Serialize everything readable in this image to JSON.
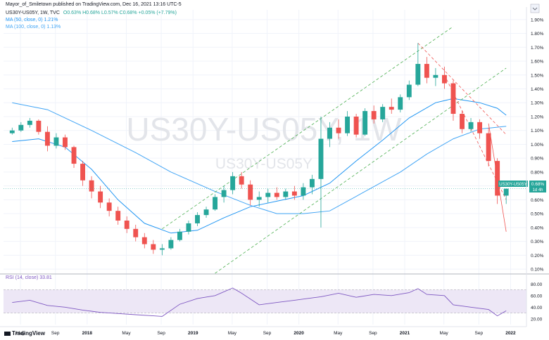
{
  "header": {
    "published": "Mayor_of_Smiletown published on TradingView.com, Dec 16, 2021 13:16 UTC-5",
    "ticker": "US30Y-US05Y, 1W, TVC",
    "ohlc": "O0.63% H0.68% L0.57% C0.68% +0.05% (+7.79%)",
    "ma50": "MA (50, close, 0)  1.21%",
    "ma100": "MA (100, close, 0)  1.13%",
    "rsi": "RSI (14, close)  33.81"
  },
  "watermark": {
    "big": "US30Y-US05Y, 1W",
    "small": "US30Y-US05Y"
  },
  "price_tag": {
    "symbol": "US30Y-US05Y",
    "value": "0.68%",
    "countdown": "1d 4h"
  },
  "footer": {
    "brand": "TradingView"
  },
  "colors": {
    "up": "#26a69a",
    "down": "#ef5350",
    "ma50": "#2196f3",
    "ma100": "#42a5f5",
    "channel_green": "#4caf50",
    "channel_red": "#ef5350",
    "rsi_line": "#7e57c2",
    "rsi_band": "#ede7f6",
    "tag": "#26a69a",
    "grid": "#f0f3fa"
  },
  "chart_data": {
    "type": "candlestick",
    "title": "US30Y-US05Y, 1W, TVC",
    "x_ticks": [
      "May",
      "Sep",
      "2018",
      "May",
      "Sep",
      "2019",
      "May",
      "Sep",
      "2020",
      "May",
      "Sep",
      "2021",
      "May",
      "Sep",
      "2022"
    ],
    "y_ticks": [
      "1.90%",
      "1.80%",
      "1.70%",
      "1.60%",
      "1.50%",
      "1.40%",
      "1.30%",
      "1.20%",
      "1.10%",
      "1.00%",
      "0.90%",
      "0.80%",
      "0.70%",
      "0.60%",
      "0.50%",
      "0.40%",
      "0.30%",
      "0.20%",
      "0.10%"
    ],
    "ylim": [
      0.07,
      1.97
    ],
    "last_close": 0.68,
    "series": [
      {
        "name": "MA (50, close, 0)",
        "points": [
          [
            "2017-04",
            1.02
          ],
          [
            "2017-07",
            1.04
          ],
          [
            "2017-10",
            0.98
          ],
          [
            "2018-01",
            0.82
          ],
          [
            "2018-04",
            0.6
          ],
          [
            "2018-07",
            0.43
          ],
          [
            "2018-10",
            0.36
          ],
          [
            "2019-01",
            0.38
          ],
          [
            "2019-04",
            0.47
          ],
          [
            "2019-07",
            0.55
          ],
          [
            "2019-10",
            0.59
          ],
          [
            "2020-01",
            0.63
          ],
          [
            "2020-04",
            0.72
          ],
          [
            "2020-07",
            0.88
          ],
          [
            "2020-10",
            1.03
          ],
          [
            "2021-01",
            1.19
          ],
          [
            "2021-04",
            1.3
          ],
          [
            "2021-06",
            1.33
          ],
          [
            "2021-09",
            1.3
          ],
          [
            "2021-11",
            1.26
          ],
          [
            "2021-12",
            1.21
          ]
        ]
      },
      {
        "name": "MA (100, close, 0)",
        "points": [
          [
            "2017-04",
            1.3
          ],
          [
            "2017-08",
            1.25
          ],
          [
            "2018-01",
            1.1
          ],
          [
            "2018-06",
            0.94
          ],
          [
            "2018-10",
            0.8
          ],
          [
            "2019-03",
            0.66
          ],
          [
            "2019-07",
            0.56
          ],
          [
            "2019-10",
            0.5
          ],
          [
            "2020-01",
            0.5
          ],
          [
            "2020-04",
            0.52
          ],
          [
            "2020-08",
            0.66
          ],
          [
            "2020-12",
            0.8
          ],
          [
            "2021-03",
            0.93
          ],
          [
            "2021-06",
            1.04
          ],
          [
            "2021-09",
            1.11
          ],
          [
            "2021-12",
            1.13
          ]
        ]
      }
    ],
    "candles": [
      [
        "2017-04",
        1.08,
        1.12,
        1.07,
        1.1
      ],
      [
        "2017-05",
        1.1,
        1.16,
        1.09,
        1.14
      ],
      [
        "2017-06",
        1.14,
        1.19,
        1.12,
        1.17
      ],
      [
        "2017-07",
        1.17,
        1.18,
        1.07,
        1.09
      ],
      [
        "2017-08",
        1.09,
        1.13,
        0.95,
        0.99
      ],
      [
        "2017-09",
        0.99,
        1.08,
        0.97,
        1.05
      ],
      [
        "2017-10",
        1.05,
        1.07,
        0.96,
        0.98
      ],
      [
        "2017-11",
        0.98,
        0.99,
        0.83,
        0.86
      ],
      [
        "2017-12",
        0.86,
        0.88,
        0.7,
        0.74
      ],
      [
        "2018-01",
        0.74,
        0.77,
        0.61,
        0.66
      ],
      [
        "2018-02",
        0.66,
        0.7,
        0.54,
        0.58
      ],
      [
        "2018-03",
        0.58,
        0.61,
        0.48,
        0.52
      ],
      [
        "2018-04",
        0.52,
        0.55,
        0.42,
        0.45
      ],
      [
        "2018-05",
        0.45,
        0.48,
        0.36,
        0.39
      ],
      [
        "2018-06",
        0.39,
        0.42,
        0.3,
        0.33
      ],
      [
        "2018-07",
        0.33,
        0.36,
        0.25,
        0.28
      ],
      [
        "2018-08",
        0.28,
        0.31,
        0.21,
        0.24
      ],
      [
        "2018-09",
        0.24,
        0.28,
        0.2,
        0.25
      ],
      [
        "2018-10",
        0.25,
        0.33,
        0.24,
        0.31
      ],
      [
        "2018-11",
        0.31,
        0.39,
        0.3,
        0.37
      ],
      [
        "2018-12",
        0.37,
        0.45,
        0.35,
        0.43
      ],
      [
        "2019-01",
        0.43,
        0.51,
        0.41,
        0.49
      ],
      [
        "2019-02",
        0.49,
        0.55,
        0.47,
        0.53
      ],
      [
        "2019-03",
        0.53,
        0.64,
        0.52,
        0.62
      ],
      [
        "2019-04",
        0.62,
        0.7,
        0.58,
        0.67
      ],
      [
        "2019-05",
        0.67,
        0.8,
        0.64,
        0.77
      ],
      [
        "2019-06",
        0.77,
        0.8,
        0.68,
        0.71
      ],
      [
        "2019-07",
        0.71,
        0.74,
        0.56,
        0.6
      ],
      [
        "2019-08",
        0.6,
        0.66,
        0.55,
        0.62
      ],
      [
        "2019-09",
        0.62,
        0.68,
        0.58,
        0.65
      ],
      [
        "2019-10",
        0.65,
        0.69,
        0.6,
        0.62
      ],
      [
        "2019-11",
        0.62,
        0.68,
        0.6,
        0.66
      ],
      [
        "2019-12",
        0.66,
        0.7,
        0.6,
        0.63
      ],
      [
        "2020-01",
        0.63,
        0.72,
        0.6,
        0.69
      ],
      [
        "2020-02",
        0.69,
        0.78,
        0.64,
        0.75
      ],
      [
        "2020-03",
        0.75,
        1.2,
        0.4,
        1.04
      ],
      [
        "2020-04",
        1.04,
        1.16,
        0.98,
        1.12
      ],
      [
        "2020-05",
        1.12,
        1.18,
        1.04,
        1.08
      ],
      [
        "2020-06",
        1.08,
        1.24,
        1.06,
        1.2
      ],
      [
        "2020-07",
        1.2,
        1.22,
        1.05,
        1.07
      ],
      [
        "2020-08",
        1.07,
        1.26,
        1.06,
        1.24
      ],
      [
        "2020-09",
        1.24,
        1.28,
        1.15,
        1.18
      ],
      [
        "2020-10",
        1.18,
        1.29,
        1.16,
        1.27
      ],
      [
        "2020-11",
        1.27,
        1.33,
        1.22,
        1.25
      ],
      [
        "2020-12",
        1.25,
        1.36,
        1.23,
        1.34
      ],
      [
        "2021-01",
        1.34,
        1.46,
        1.32,
        1.43
      ],
      [
        "2021-02",
        1.43,
        1.73,
        1.42,
        1.58
      ],
      [
        "2021-03",
        1.58,
        1.63,
        1.44,
        1.48
      ],
      [
        "2021-04",
        1.48,
        1.55,
        1.42,
        1.5
      ],
      [
        "2021-05",
        1.5,
        1.56,
        1.4,
        1.44
      ],
      [
        "2021-06",
        1.44,
        1.46,
        1.17,
        1.22
      ],
      [
        "2021-07",
        1.22,
        1.24,
        1.08,
        1.11
      ],
      [
        "2021-08",
        1.11,
        1.19,
        1.09,
        1.16
      ],
      [
        "2021-09",
        1.16,
        1.18,
        1.04,
        1.08
      ],
      [
        "2021-10",
        1.08,
        1.12,
        0.84,
        0.88
      ],
      [
        "2021-11",
        0.88,
        0.9,
        0.57,
        0.63
      ],
      [
        "2021-12",
        0.63,
        0.68,
        0.57,
        0.68
      ]
    ],
    "trendlines": [
      {
        "name": "green channel upper",
        "points": [
          [
            "2018-09",
            0.39
          ],
          [
            "2021-06",
            1.85
          ]
        ]
      },
      {
        "name": "green channel lower",
        "points": [
          [
            "2019-03",
            0.07
          ],
          [
            "2021-12",
            1.55
          ]
        ]
      },
      {
        "name": "red channel upper",
        "points": [
          [
            "2021-02",
            1.73
          ],
          [
            "2021-12",
            1.07
          ]
        ]
      },
      {
        "name": "red channel lower",
        "points": [
          [
            "2021-05",
            1.5
          ],
          [
            "2021-12",
            0.6
          ]
        ]
      },
      {
        "name": "down trendline",
        "points": [
          [
            "2021-10",
            1.15
          ],
          [
            "2021-12",
            0.37
          ]
        ]
      }
    ],
    "rsi": {
      "name": "RSI (14, close)",
      "y_ticks": [
        "80.00",
        "60.00",
        "40.00",
        "20.00"
      ],
      "ylim": [
        10,
        90
      ],
      "band": [
        30,
        70
      ],
      "points": [
        [
          "2017-04",
          48
        ],
        [
          "2017-06",
          52
        ],
        [
          "2017-08",
          43
        ],
        [
          "2017-10",
          40
        ],
        [
          "2017-12",
          35
        ],
        [
          "2018-02",
          31
        ],
        [
          "2018-04",
          29
        ],
        [
          "2018-06",
          27
        ],
        [
          "2018-08",
          25
        ],
        [
          "2018-09",
          24
        ],
        [
          "2018-11",
          45
        ],
        [
          "2019-01",
          55
        ],
        [
          "2019-03",
          60
        ],
        [
          "2019-05",
          73
        ],
        [
          "2019-06",
          64
        ],
        [
          "2019-08",
          44
        ],
        [
          "2019-10",
          48
        ],
        [
          "2019-12",
          52
        ],
        [
          "2020-02",
          56
        ],
        [
          "2020-03",
          58
        ],
        [
          "2020-05",
          64
        ],
        [
          "2020-07",
          57
        ],
        [
          "2020-09",
          62
        ],
        [
          "2020-11",
          60
        ],
        [
          "2021-01",
          65
        ],
        [
          "2021-02",
          72
        ],
        [
          "2021-03",
          62
        ],
        [
          "2021-05",
          60
        ],
        [
          "2021-06",
          44
        ],
        [
          "2021-08",
          40
        ],
        [
          "2021-10",
          36
        ],
        [
          "2021-11",
          25
        ],
        [
          "2021-12",
          33.81
        ]
      ]
    }
  }
}
